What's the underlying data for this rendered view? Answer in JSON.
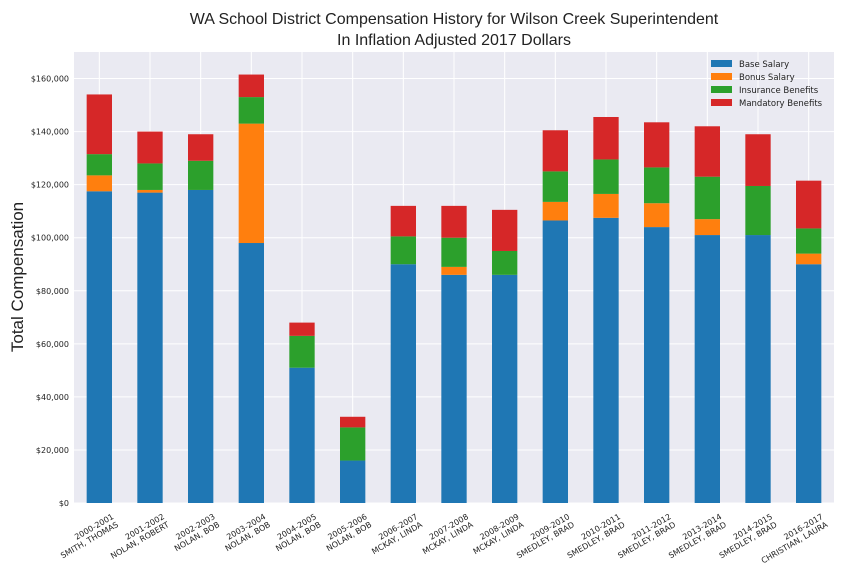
{
  "chart_data": {
    "type": "bar",
    "stacked": true,
    "title": "WA School District Compensation History for Wilson Creek Superintendent",
    "subtitle": "In Inflation Adjusted 2017 Dollars",
    "xlabel": "",
    "ylabel": "Total Compensation",
    "ylim": [
      0,
      170000
    ],
    "yticks": [
      0,
      20000,
      40000,
      60000,
      80000,
      100000,
      120000,
      140000,
      160000
    ],
    "ytick_labels": [
      "$0",
      "$20,000",
      "$40,000",
      "$60,000",
      "$80,000",
      "$100,000",
      "$120,000",
      "$140,000",
      "$160,000"
    ],
    "grid": true,
    "legend_position": "top-right",
    "categories": [
      [
        "2000-2001",
        "SMITH, THOMAS"
      ],
      [
        "2001-2002",
        "NOLAN, ROBERT"
      ],
      [
        "2002-2003",
        "NOLAN, BOB"
      ],
      [
        "2003-2004",
        "NOLAN, BOB"
      ],
      [
        "2004-2005",
        "NOLAN, BOB"
      ],
      [
        "2005-2006",
        "NOLAN, BOB"
      ],
      [
        "2006-2007",
        "MCKAY, LINDA"
      ],
      [
        "2007-2008",
        "MCKAY, LINDA"
      ],
      [
        "2008-2009",
        "MCKAY, LINDA"
      ],
      [
        "2009-2010",
        "SMEDLEY, BRAD"
      ],
      [
        "2010-2011",
        "SMEDLEY, BRAD"
      ],
      [
        "2011-2012",
        "SMEDLEY, BRAD"
      ],
      [
        "2013-2014",
        "SMEDLEY, BRAD"
      ],
      [
        "2014-2015",
        "SMEDLEY, BRAD"
      ],
      [
        "2016-2017",
        "CHRISTIAN, LAURA"
      ]
    ],
    "series": [
      {
        "name": "Base Salary",
        "color": "#1f77b4",
        "values": [
          117500,
          117000,
          118000,
          98000,
          51000,
          16000,
          90000,
          86000,
          86000,
          106500,
          107500,
          104000,
          101000,
          101000,
          90000
        ]
      },
      {
        "name": "Bonus Salary",
        "color": "#ff7f0e",
        "values": [
          6000,
          1000,
          0,
          45000,
          0,
          0,
          0,
          3000,
          0,
          7000,
          9000,
          9000,
          6000,
          0,
          4000
        ]
      },
      {
        "name": "Insurance Benefits",
        "color": "#2ca02c",
        "values": [
          8000,
          10000,
          11000,
          10000,
          12000,
          12500,
          10500,
          11000,
          9000,
          11500,
          13000,
          13500,
          16000,
          18500,
          9500
        ]
      },
      {
        "name": "Mandatory Benefits",
        "color": "#d62728",
        "values": [
          22500,
          12000,
          10000,
          8500,
          5000,
          4000,
          11500,
          12000,
          15500,
          15500,
          16000,
          17000,
          19000,
          19500,
          18000
        ]
      }
    ]
  }
}
